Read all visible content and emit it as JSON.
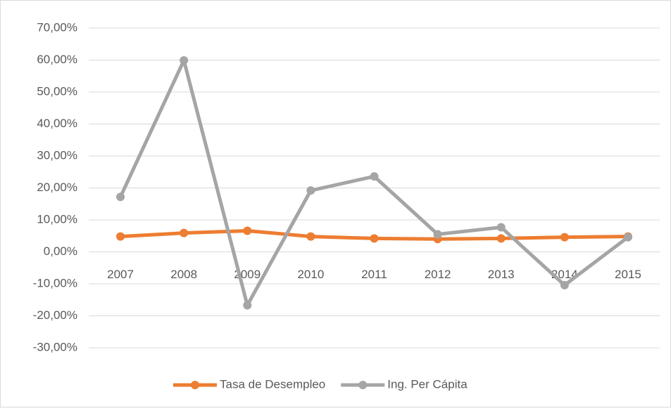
{
  "chart_data": {
    "type": "line",
    "categories": [
      "2007",
      "2008",
      "2009",
      "2010",
      "2011",
      "2012",
      "2013",
      "2014",
      "2015"
    ],
    "series": [
      {
        "name": "Tasa de Desempleo",
        "color": "#ed7d31",
        "values": [
          4.8,
          5.9,
          6.6,
          4.8,
          4.2,
          4.0,
          4.2,
          4.6,
          4.8
        ]
      },
      {
        "name": "Ing. Per Cápita",
        "color": "#a5a5a5",
        "values": [
          17.2,
          59.9,
          -16.7,
          19.2,
          23.6,
          5.5,
          7.7,
          -10.4,
          4.6
        ]
      }
    ],
    "ylim": [
      -30,
      70
    ],
    "yticks": [
      {
        "value": -30,
        "label": "-30,00%"
      },
      {
        "value": -20,
        "label": "-20,00%"
      },
      {
        "value": -10,
        "label": "-10,00%"
      },
      {
        "value": 0,
        "label": "0,00%"
      },
      {
        "value": 10,
        "label": "10,00%"
      },
      {
        "value": 20,
        "label": "20,00%"
      },
      {
        "value": 30,
        "label": "30,00%"
      },
      {
        "value": 40,
        "label": "40,00%"
      },
      {
        "value": 50,
        "label": "50,00%"
      },
      {
        "value": 60,
        "label": "60,00%"
      },
      {
        "value": 70,
        "label": "70,00%"
      }
    ],
    "grid": true,
    "legend": "bottom"
  }
}
